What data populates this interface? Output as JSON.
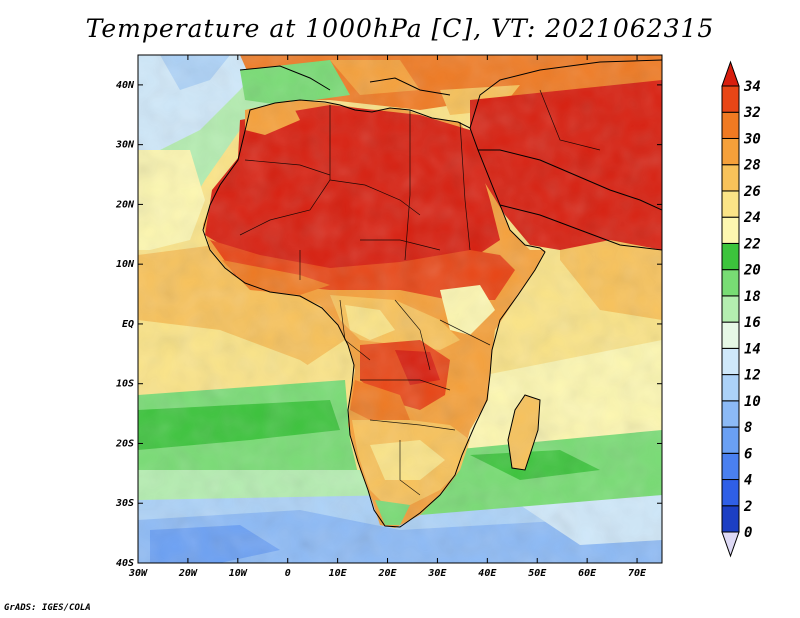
{
  "title": "Temperature at 1000hPa [C], VT: 2021062315",
  "credit": "GrADS: IGES/COLA",
  "map": {
    "lon_range": [
      -30,
      75
    ],
    "lat_range": [
      -40,
      45
    ],
    "lon_ticks": [
      {
        "value": -30,
        "label": "30W"
      },
      {
        "value": -20,
        "label": "20W"
      },
      {
        "value": -10,
        "label": "10W"
      },
      {
        "value": 0,
        "label": "0"
      },
      {
        "value": 10,
        "label": "10E"
      },
      {
        "value": 20,
        "label": "20E"
      },
      {
        "value": 30,
        "label": "30E"
      },
      {
        "value": 40,
        "label": "40E"
      },
      {
        "value": 50,
        "label": "50E"
      },
      {
        "value": 60,
        "label": "60E"
      },
      {
        "value": 70,
        "label": "70E"
      }
    ],
    "lat_ticks": [
      {
        "value": 40,
        "label": "40N"
      },
      {
        "value": 30,
        "label": "30N"
      },
      {
        "value": 20,
        "label": "20N"
      },
      {
        "value": 10,
        "label": "10N"
      },
      {
        "value": 0,
        "label": "EQ"
      },
      {
        "value": -10,
        "label": "10S"
      },
      {
        "value": -20,
        "label": "20S"
      },
      {
        "value": -30,
        "label": "30S"
      },
      {
        "value": -40,
        "label": "40S"
      }
    ]
  },
  "colorbar": {
    "levels": [
      {
        "value": "0",
        "color": "#0a1a8a"
      },
      {
        "value": "2",
        "color": "#1c3fc4"
      },
      {
        "value": "4",
        "color": "#2f5fe6"
      },
      {
        "value": "6",
        "color": "#4a80f0"
      },
      {
        "value": "8",
        "color": "#6aa0f4"
      },
      {
        "value": "10",
        "color": "#8cbaf6"
      },
      {
        "value": "12",
        "color": "#acd2f8"
      },
      {
        "value": "14",
        "color": "#cfe8fa"
      },
      {
        "value": "16",
        "color": "#e6f8e6"
      },
      {
        "value": "18",
        "color": "#b4eeb0"
      },
      {
        "value": "20",
        "color": "#78dc74"
      },
      {
        "value": "22",
        "color": "#3cc43c"
      },
      {
        "value": "24",
        "color": "#fdf7b0"
      },
      {
        "value": "26",
        "color": "#fbe487"
      },
      {
        "value": "28",
        "color": "#f8c25a"
      },
      {
        "value": "30",
        "color": "#f5a03a"
      },
      {
        "value": "32",
        "color": "#f07a22"
      },
      {
        "value": "34",
        "color": "#e84616"
      }
    ],
    "top_color": "#d81e0e",
    "bottom_color": "#ddd9f5"
  }
}
